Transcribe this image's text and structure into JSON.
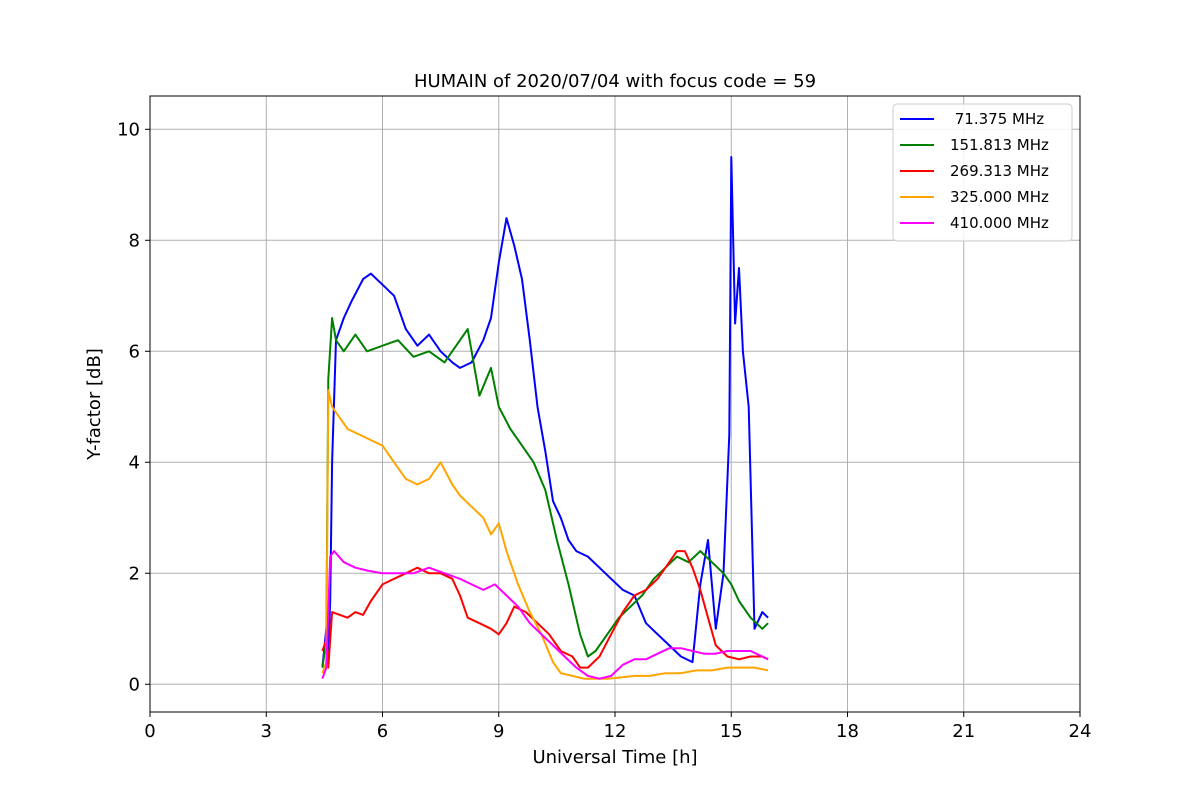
{
  "chart_data": {
    "type": "line",
    "title": "HUMAIN of 2020/07/04 with focus code = 59",
    "xlabel": "Universal Time [h]",
    "ylabel": "Y-factor [dB]",
    "xlim": [
      0,
      24
    ],
    "ylim": [
      -0.5,
      10.6
    ],
    "xticks": [
      0,
      3,
      6,
      9,
      12,
      15,
      18,
      21,
      24
    ],
    "yticks": [
      0,
      2,
      4,
      6,
      8,
      10
    ],
    "grid": true,
    "legend_position": "top-right",
    "series": [
      {
        "name": " 71.375 MHz",
        "color": "#0000ff",
        "x": [
          4.45,
          4.55,
          4.6,
          4.65,
          4.7,
          4.8,
          5.0,
          5.2,
          5.5,
          5.7,
          6.0,
          6.3,
          6.6,
          6.9,
          7.2,
          7.5,
          7.8,
          8.0,
          8.3,
          8.6,
          8.8,
          9.0,
          9.2,
          9.4,
          9.6,
          9.8,
          10.0,
          10.2,
          10.4,
          10.6,
          10.8,
          11.0,
          11.3,
          11.6,
          11.9,
          12.2,
          12.5,
          12.8,
          13.1,
          13.4,
          13.7,
          14.0,
          14.2,
          14.4,
          14.6,
          14.8,
          14.95,
          15.0,
          15.1,
          15.2,
          15.3,
          15.45,
          15.6,
          15.8,
          15.95
        ],
        "values": [
          0.3,
          1.0,
          0.6,
          1.5,
          4.0,
          6.2,
          6.6,
          6.9,
          7.3,
          7.4,
          7.2,
          7.0,
          6.4,
          6.1,
          6.3,
          6.0,
          5.8,
          5.7,
          5.8,
          6.2,
          6.6,
          7.6,
          8.4,
          7.9,
          7.3,
          6.2,
          5.0,
          4.2,
          3.3,
          3.0,
          2.6,
          2.4,
          2.3,
          2.1,
          1.9,
          1.7,
          1.6,
          1.1,
          0.9,
          0.7,
          0.5,
          0.4,
          1.8,
          2.6,
          1.0,
          2.0,
          4.5,
          9.5,
          6.5,
          7.5,
          6.0,
          5.0,
          1.0,
          1.3,
          1.2
        ]
      },
      {
        "name": "151.813 MHz",
        "color": "#008000",
        "x": [
          4.45,
          4.55,
          4.6,
          4.7,
          4.8,
          5.0,
          5.3,
          5.6,
          6.0,
          6.4,
          6.8,
          7.2,
          7.6,
          8.0,
          8.2,
          8.5,
          8.8,
          9.0,
          9.3,
          9.6,
          9.9,
          10.2,
          10.5,
          10.8,
          11.1,
          11.3,
          11.5,
          11.8,
          12.1,
          12.4,
          12.7,
          13.0,
          13.3,
          13.6,
          13.9,
          14.2,
          14.5,
          14.8,
          15.0,
          15.2,
          15.5,
          15.8,
          15.95
        ],
        "values": [
          0.3,
          0.8,
          5.5,
          6.6,
          6.2,
          6.0,
          6.3,
          6.0,
          6.1,
          6.2,
          5.9,
          6.0,
          5.8,
          6.2,
          6.4,
          5.2,
          5.7,
          5.0,
          4.6,
          4.3,
          4.0,
          3.5,
          2.6,
          1.8,
          0.9,
          0.5,
          0.6,
          0.9,
          1.2,
          1.4,
          1.6,
          1.9,
          2.1,
          2.3,
          2.2,
          2.4,
          2.2,
          2.0,
          1.8,
          1.5,
          1.2,
          1.0,
          1.1
        ]
      },
      {
        "name": "269.313 MHz",
        "color": "#ff0000",
        "x": [
          4.45,
          4.55,
          4.6,
          4.7,
          4.9,
          5.1,
          5.3,
          5.5,
          5.7,
          6.0,
          6.3,
          6.6,
          6.9,
          7.2,
          7.5,
          7.8,
          8.0,
          8.2,
          8.5,
          8.8,
          9.0,
          9.2,
          9.4,
          9.7,
          10.0,
          10.3,
          10.6,
          10.9,
          11.1,
          11.3,
          11.6,
          11.9,
          12.2,
          12.5,
          12.8,
          13.1,
          13.4,
          13.6,
          13.8,
          14.0,
          14.2,
          14.4,
          14.6,
          14.9,
          15.2,
          15.5,
          15.8,
          15.95
        ],
        "values": [
          0.6,
          0.8,
          0.3,
          1.3,
          1.25,
          1.2,
          1.3,
          1.25,
          1.5,
          1.8,
          1.9,
          2.0,
          2.1,
          2.0,
          2.0,
          1.9,
          1.6,
          1.2,
          1.1,
          1.0,
          0.9,
          1.1,
          1.4,
          1.3,
          1.1,
          0.9,
          0.6,
          0.5,
          0.3,
          0.3,
          0.5,
          0.9,
          1.3,
          1.6,
          1.7,
          1.9,
          2.2,
          2.4,
          2.4,
          2.1,
          1.7,
          1.2,
          0.7,
          0.5,
          0.45,
          0.5,
          0.5,
          0.45
        ]
      },
      {
        "name": "325.000 MHz",
        "color": "#ffa500",
        "x": [
          4.45,
          4.55,
          4.6,
          4.7,
          4.9,
          5.1,
          5.4,
          5.7,
          6.0,
          6.3,
          6.6,
          6.9,
          7.2,
          7.5,
          7.8,
          8.0,
          8.3,
          8.6,
          8.8,
          9.0,
          9.2,
          9.5,
          9.8,
          10.1,
          10.4,
          10.6,
          10.9,
          11.2,
          11.5,
          11.8,
          12.1,
          12.5,
          12.9,
          13.3,
          13.7,
          14.1,
          14.5,
          14.9,
          15.3,
          15.6,
          15.95
        ],
        "values": [
          0.2,
          0.4,
          5.3,
          5.0,
          4.8,
          4.6,
          4.5,
          4.4,
          4.3,
          4.0,
          3.7,
          3.6,
          3.7,
          4.0,
          3.6,
          3.4,
          3.2,
          3.0,
          2.7,
          2.9,
          2.4,
          1.8,
          1.3,
          0.9,
          0.4,
          0.2,
          0.15,
          0.1,
          0.1,
          0.1,
          0.12,
          0.15,
          0.15,
          0.2,
          0.2,
          0.25,
          0.25,
          0.3,
          0.3,
          0.3,
          0.25
        ]
      },
      {
        "name": "410.000 MHz",
        "color": "#ff00ff",
        "x": [
          4.45,
          4.55,
          4.65,
          4.75,
          5.0,
          5.3,
          5.6,
          6.0,
          6.4,
          6.8,
          7.2,
          7.6,
          8.0,
          8.3,
          8.6,
          8.9,
          9.2,
          9.5,
          9.8,
          10.1,
          10.4,
          10.7,
          11.0,
          11.3,
          11.6,
          11.9,
          12.2,
          12.5,
          12.8,
          13.1,
          13.4,
          13.7,
          14.0,
          14.3,
          14.6,
          14.9,
          15.2,
          15.5,
          15.8,
          15.95
        ],
        "values": [
          0.1,
          0.3,
          2.3,
          2.4,
          2.2,
          2.1,
          2.05,
          2.0,
          2.0,
          2.0,
          2.1,
          2.0,
          1.9,
          1.8,
          1.7,
          1.8,
          1.6,
          1.4,
          1.1,
          0.9,
          0.7,
          0.5,
          0.3,
          0.15,
          0.1,
          0.15,
          0.35,
          0.45,
          0.45,
          0.55,
          0.65,
          0.65,
          0.6,
          0.55,
          0.55,
          0.6,
          0.6,
          0.6,
          0.5,
          0.45
        ]
      }
    ]
  }
}
